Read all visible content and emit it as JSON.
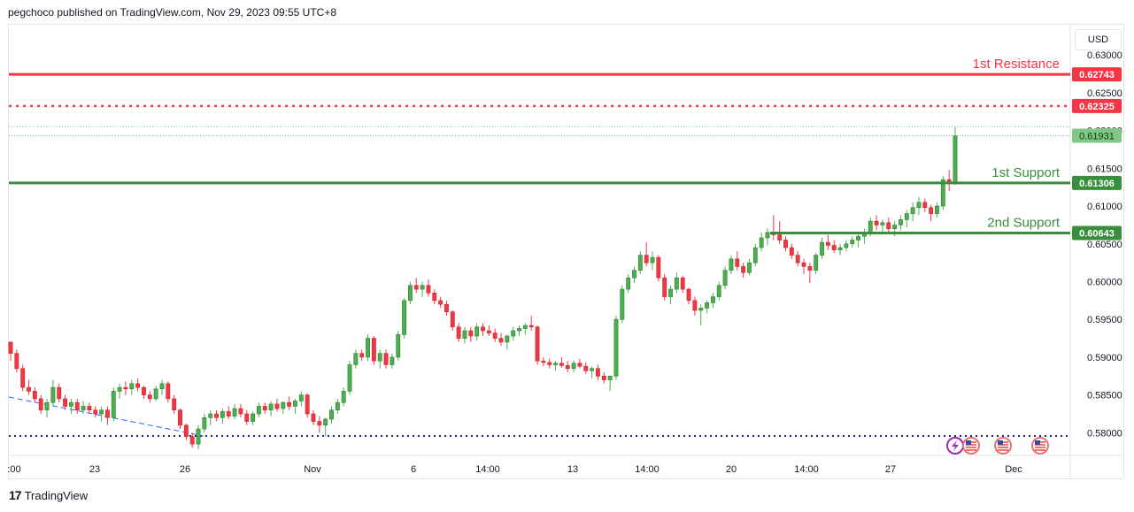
{
  "header": {
    "text": "pegchoco published on TradingView.com, Nov 29, 2023 09:55 UTC+8"
  },
  "currency": "USD",
  "footer": {
    "brand": "TradingView"
  },
  "colors": {
    "up": "#4caf50",
    "down": "#f23645",
    "resistance": "#f23645",
    "support": "#388e3c",
    "current": "#66bb6a",
    "trend": "#2962ff",
    "dotted_base": "#1a237e"
  },
  "chart_data": {
    "type": "candlestick",
    "title": "",
    "ylim": [
      0.577,
      0.634
    ],
    "y_ticks": [
      "0.63000",
      "0.62500",
      "0.62000",
      "0.61500",
      "0.61000",
      "0.60500",
      "0.60000",
      "0.59500",
      "0.59000",
      "0.58500",
      "0.58000"
    ],
    "x_ticks": [
      ":00",
      "23",
      "26",
      "Nov",
      "6",
      "14:00",
      "13",
      "14:00",
      "20",
      "14:00",
      "27",
      "Dec"
    ],
    "levels": [
      {
        "label": "1st Resistance",
        "price": "0.62743",
        "value": 0.62743,
        "style": "solid",
        "color": "#f23645"
      },
      {
        "label": "",
        "price": "0.62325",
        "value": 0.62325,
        "style": "dotted",
        "color": "#f23645"
      },
      {
        "label": "1st Support",
        "price": "0.61306",
        "value": 0.61306,
        "style": "solid",
        "color": "#388e3c"
      },
      {
        "label": "2nd Support",
        "price": "0.60643",
        "value": 0.60643,
        "style": "solid",
        "color": "#388e3c"
      }
    ],
    "current_price": {
      "price": "0.61931",
      "value": 0.61931
    },
    "last_high": 0.6205,
    "candles": [
      [
        0.592,
        0.592,
        0.5895,
        0.5905
      ],
      [
        0.5905,
        0.591,
        0.588,
        0.5885
      ],
      [
        0.5885,
        0.589,
        0.5855,
        0.586
      ],
      [
        0.586,
        0.587,
        0.585,
        0.5855
      ],
      [
        0.5855,
        0.586,
        0.584,
        0.5845
      ],
      [
        0.5845,
        0.585,
        0.5825,
        0.583
      ],
      [
        0.583,
        0.5845,
        0.582,
        0.584
      ],
      [
        0.584,
        0.587,
        0.5835,
        0.586
      ],
      [
        0.586,
        0.5865,
        0.584,
        0.5845
      ],
      [
        0.5845,
        0.585,
        0.583,
        0.5835
      ],
      [
        0.5835,
        0.5845,
        0.5825,
        0.584
      ],
      [
        0.584,
        0.5845,
        0.5825,
        0.583
      ],
      [
        0.583,
        0.5842,
        0.5825,
        0.5835
      ],
      [
        0.5835,
        0.584,
        0.5825,
        0.583
      ],
      [
        0.583,
        0.5835,
        0.582,
        0.5825
      ],
      [
        0.5825,
        0.5835,
        0.5815,
        0.583
      ],
      [
        0.583,
        0.5835,
        0.581,
        0.582
      ],
      [
        0.582,
        0.586,
        0.5815,
        0.5855
      ],
      [
        0.5855,
        0.5865,
        0.5845,
        0.586
      ],
      [
        0.586,
        0.5868,
        0.585,
        0.5858
      ],
      [
        0.5858,
        0.587,
        0.585,
        0.5865
      ],
      [
        0.5865,
        0.5872,
        0.5855,
        0.586
      ],
      [
        0.586,
        0.5862,
        0.5845,
        0.585
      ],
      [
        0.585,
        0.5855,
        0.584,
        0.5845
      ],
      [
        0.5845,
        0.5862,
        0.5842,
        0.5858
      ],
      [
        0.5858,
        0.587,
        0.585,
        0.5865
      ],
      [
        0.5865,
        0.5868,
        0.584,
        0.5845
      ],
      [
        0.5845,
        0.585,
        0.5825,
        0.583
      ],
      [
        0.583,
        0.5832,
        0.5805,
        0.581
      ],
      [
        0.581,
        0.5812,
        0.579,
        0.5795
      ],
      [
        0.5795,
        0.58,
        0.578,
        0.5785
      ],
      [
        0.5785,
        0.581,
        0.5778,
        0.5805
      ],
      [
        0.5805,
        0.5825,
        0.58,
        0.582
      ],
      [
        0.582,
        0.583,
        0.581,
        0.5825
      ],
      [
        0.5825,
        0.583,
        0.5815,
        0.582
      ],
      [
        0.582,
        0.5832,
        0.5812,
        0.5828
      ],
      [
        0.5828,
        0.5835,
        0.5818,
        0.5822
      ],
      [
        0.5822,
        0.5838,
        0.5818,
        0.5832
      ],
      [
        0.5832,
        0.5838,
        0.582,
        0.5825
      ],
      [
        0.5825,
        0.583,
        0.581,
        0.5815
      ],
      [
        0.5815,
        0.5828,
        0.581,
        0.5825
      ],
      [
        0.5825,
        0.584,
        0.582,
        0.5835
      ],
      [
        0.5835,
        0.584,
        0.5825,
        0.583
      ],
      [
        0.583,
        0.5842,
        0.5822,
        0.5838
      ],
      [
        0.5838,
        0.5845,
        0.5828,
        0.5832
      ],
      [
        0.5832,
        0.5842,
        0.5825,
        0.584
      ],
      [
        0.584,
        0.5848,
        0.583,
        0.5835
      ],
      [
        0.5835,
        0.5845,
        0.5825,
        0.5842
      ],
      [
        0.5842,
        0.5855,
        0.5835,
        0.585
      ],
      [
        0.585,
        0.5852,
        0.582,
        0.5825
      ],
      [
        0.5825,
        0.583,
        0.581,
        0.5815
      ],
      [
        0.5815,
        0.5822,
        0.58,
        0.581
      ],
      [
        0.581,
        0.582,
        0.5795,
        0.5818
      ],
      [
        0.5818,
        0.5835,
        0.5812,
        0.583
      ],
      [
        0.583,
        0.5845,
        0.5825,
        0.584
      ],
      [
        0.584,
        0.586,
        0.5835,
        0.5855
      ],
      [
        0.5855,
        0.5895,
        0.585,
        0.589
      ],
      [
        0.589,
        0.591,
        0.5885,
        0.5905
      ],
      [
        0.5905,
        0.591,
        0.5895,
        0.59
      ],
      [
        0.59,
        0.593,
        0.5895,
        0.5925
      ],
      [
        0.5925,
        0.5928,
        0.589,
        0.5895
      ],
      [
        0.5895,
        0.591,
        0.5885,
        0.5905
      ],
      [
        0.5905,
        0.591,
        0.5885,
        0.589
      ],
      [
        0.589,
        0.5905,
        0.5885,
        0.59
      ],
      [
        0.59,
        0.5935,
        0.5895,
        0.593
      ],
      [
        0.593,
        0.5978,
        0.5925,
        0.5975
      ],
      [
        0.5975,
        0.6,
        0.597,
        0.5995
      ],
      [
        0.5995,
        0.6005,
        0.5985,
        0.599
      ],
      [
        0.599,
        0.6,
        0.598,
        0.5995
      ],
      [
        0.5995,
        0.6003,
        0.598,
        0.5985
      ],
      [
        0.5985,
        0.599,
        0.597,
        0.5975
      ],
      [
        0.5975,
        0.598,
        0.5965,
        0.597
      ],
      [
        0.597,
        0.5975,
        0.5955,
        0.596
      ],
      [
        0.596,
        0.5962,
        0.5935,
        0.594
      ],
      [
        0.594,
        0.5945,
        0.592,
        0.5925
      ],
      [
        0.5925,
        0.594,
        0.5918,
        0.5935
      ],
      [
        0.5935,
        0.594,
        0.592,
        0.5928
      ],
      [
        0.5928,
        0.5945,
        0.5922,
        0.594
      ],
      [
        0.594,
        0.5945,
        0.5928,
        0.5935
      ],
      [
        0.5935,
        0.5942,
        0.5928,
        0.5932
      ],
      [
        0.5932,
        0.5938,
        0.592,
        0.5925
      ],
      [
        0.5925,
        0.5932,
        0.5915,
        0.592
      ],
      [
        0.592,
        0.593,
        0.591,
        0.5928
      ],
      [
        0.5928,
        0.594,
        0.5922,
        0.5935
      ],
      [
        0.5935,
        0.5942,
        0.5928,
        0.5938
      ],
      [
        0.5938,
        0.5945,
        0.593,
        0.5942
      ],
      [
        0.5942,
        0.5955,
        0.5935,
        0.594
      ],
      [
        0.594,
        0.5942,
        0.589,
        0.5895
      ],
      [
        0.5895,
        0.59,
        0.5888,
        0.5893
      ],
      [
        0.5893,
        0.5898,
        0.5885,
        0.589
      ],
      [
        0.589,
        0.5895,
        0.5882,
        0.5892
      ],
      [
        0.5892,
        0.59,
        0.5886,
        0.5889
      ],
      [
        0.5889,
        0.5895,
        0.588,
        0.5885
      ],
      [
        0.5885,
        0.5896,
        0.588,
        0.5892
      ],
      [
        0.5892,
        0.5898,
        0.5885,
        0.5888
      ],
      [
        0.5888,
        0.5893,
        0.5878,
        0.5882
      ],
      [
        0.5882,
        0.5888,
        0.5872,
        0.5885
      ],
      [
        0.5885,
        0.589,
        0.587,
        0.5875
      ],
      [
        0.5875,
        0.588,
        0.5865,
        0.587
      ],
      [
        0.587,
        0.5875,
        0.5855,
        0.5875
      ],
      [
        0.5875,
        0.5955,
        0.587,
        0.595
      ],
      [
        0.595,
        0.5995,
        0.5945,
        0.599
      ],
      [
        0.599,
        0.601,
        0.5985,
        0.6005
      ],
      [
        0.6005,
        0.602,
        0.5998,
        0.6015
      ],
      [
        0.6015,
        0.604,
        0.601,
        0.6035
      ],
      [
        0.6035,
        0.6052,
        0.602,
        0.6025
      ],
      [
        0.6025,
        0.604,
        0.6015,
        0.6032
      ],
      [
        0.6032,
        0.6035,
        0.6,
        0.6005
      ],
      [
        0.6005,
        0.601,
        0.5975,
        0.598
      ],
      [
        0.598,
        0.5995,
        0.597,
        0.599
      ],
      [
        0.599,
        0.6012,
        0.5985,
        0.6005
      ],
      [
        0.6005,
        0.6008,
        0.5985,
        0.599
      ],
      [
        0.599,
        0.5992,
        0.597,
        0.5975
      ],
      [
        0.5975,
        0.598,
        0.5955,
        0.5962
      ],
      [
        0.5962,
        0.597,
        0.5942,
        0.5965
      ],
      [
        0.5965,
        0.5975,
        0.5958,
        0.5972
      ],
      [
        0.5972,
        0.5985,
        0.5965,
        0.598
      ],
      [
        0.598,
        0.6,
        0.5975,
        0.5995
      ],
      [
        0.5995,
        0.602,
        0.599,
        0.6015
      ],
      [
        0.6015,
        0.6035,
        0.601,
        0.603
      ],
      [
        0.603,
        0.604,
        0.6015,
        0.602
      ],
      [
        0.602,
        0.6025,
        0.6005,
        0.6012
      ],
      [
        0.6012,
        0.603,
        0.6008,
        0.6025
      ],
      [
        0.6025,
        0.605,
        0.602,
        0.6045
      ],
      [
        0.6045,
        0.6065,
        0.604,
        0.6058
      ],
      [
        0.6058,
        0.607,
        0.6048,
        0.6065
      ],
      [
        0.6065,
        0.6088,
        0.6055,
        0.6062
      ],
      [
        0.6062,
        0.608,
        0.605,
        0.6055
      ],
      [
        0.6055,
        0.606,
        0.604,
        0.6045
      ],
      [
        0.6045,
        0.605,
        0.603,
        0.6035
      ],
      [
        0.6035,
        0.604,
        0.602,
        0.6025
      ],
      [
        0.6025,
        0.603,
        0.601,
        0.602
      ],
      [
        0.602,
        0.6025,
        0.5998,
        0.6015
      ],
      [
        0.6015,
        0.6038,
        0.601,
        0.6035
      ],
      [
        0.6035,
        0.6058,
        0.603,
        0.6052
      ],
      [
        0.6052,
        0.6062,
        0.6042,
        0.6048
      ],
      [
        0.6048,
        0.6055,
        0.6038,
        0.6042
      ],
      [
        0.6042,
        0.605,
        0.6035,
        0.6045
      ],
      [
        0.6045,
        0.6055,
        0.604,
        0.605
      ],
      [
        0.605,
        0.606,
        0.6045,
        0.6055
      ],
      [
        0.6055,
        0.6065,
        0.6045,
        0.606
      ],
      [
        0.606,
        0.607,
        0.605,
        0.6065
      ],
      [
        0.6065,
        0.6085,
        0.606,
        0.608
      ],
      [
        0.608,
        0.6088,
        0.6068,
        0.6075
      ],
      [
        0.6075,
        0.6082,
        0.6062,
        0.6078
      ],
      [
        0.6078,
        0.6085,
        0.6065,
        0.607
      ],
      [
        0.607,
        0.608,
        0.606,
        0.6075
      ],
      [
        0.6075,
        0.6088,
        0.6068,
        0.6082
      ],
      [
        0.6082,
        0.6095,
        0.6072,
        0.609
      ],
      [
        0.609,
        0.6105,
        0.608,
        0.6098
      ],
      [
        0.6098,
        0.6112,
        0.6088,
        0.6105
      ],
      [
        0.6105,
        0.611,
        0.6092,
        0.6098
      ],
      [
        0.6098,
        0.6102,
        0.608,
        0.609
      ],
      [
        0.609,
        0.6105,
        0.6085,
        0.61
      ],
      [
        0.61,
        0.614,
        0.6095,
        0.6135
      ],
      [
        0.6135,
        0.6148,
        0.612,
        0.613
      ],
      [
        0.613,
        0.6205,
        0.6128,
        0.6193
      ]
    ]
  }
}
